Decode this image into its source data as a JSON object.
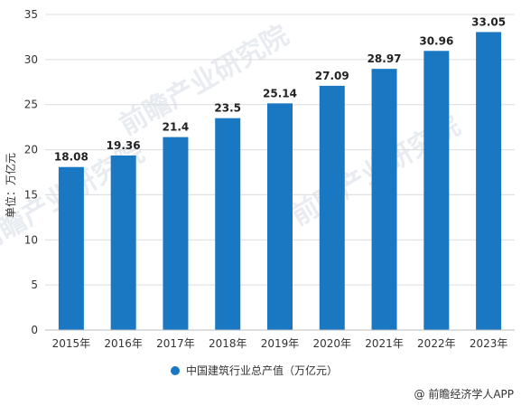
{
  "chart_data": {
    "type": "bar",
    "categories": [
      "2015年",
      "2016年",
      "2017年",
      "2018年",
      "2019年",
      "2020年",
      "2021年",
      "2022年",
      "2023年"
    ],
    "series": [
      {
        "name": "中国建筑行业总产值（万亿元）",
        "values": [
          18.08,
          19.36,
          21.4,
          23.5,
          25.14,
          27.09,
          28.97,
          30.96,
          33.05
        ],
        "labels": [
          "18.08",
          "19.36",
          "21.4",
          "23.5",
          "25.14",
          "27.09",
          "28.97",
          "30.96",
          "33.05"
        ],
        "color": "#1a78c2"
      }
    ],
    "ylabel": "单位：万亿元",
    "ylim": [
      0,
      35
    ],
    "yticks": [
      0,
      5,
      10,
      15,
      20,
      25,
      30,
      35
    ],
    "grid": true,
    "legend_position": "bottom-center"
  },
  "watermark": "前瞻产业研究院",
  "credit": "@ 前瞻经济学人APP",
  "colors": {
    "bar": "#1a78c2",
    "grid": "#dcdcdc",
    "axis": "#bdbdbd"
  }
}
